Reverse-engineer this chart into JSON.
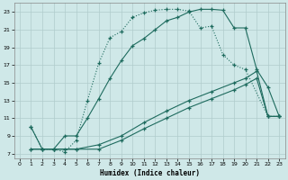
{
  "xlabel": "Humidex (Indice chaleur)",
  "bg_color": "#cfe8e8",
  "grid_color": "#b0cccc",
  "line_color": "#1e6b5e",
  "xlim": [
    -0.5,
    23.5
  ],
  "ylim": [
    6.5,
    24
  ],
  "xticks": [
    0,
    1,
    2,
    3,
    4,
    5,
    6,
    7,
    8,
    9,
    10,
    11,
    12,
    13,
    14,
    15,
    16,
    17,
    18,
    19,
    20,
    21,
    22,
    23
  ],
  "yticks": [
    7,
    9,
    11,
    13,
    15,
    17,
    19,
    21,
    23
  ],
  "line1_x": [
    1,
    2,
    3,
    4,
    5,
    6,
    7,
    8,
    9,
    10,
    11,
    12,
    13,
    14,
    15,
    16,
    17,
    18,
    19,
    20,
    22,
    23
  ],
  "line1_y": [
    10,
    7.5,
    7.5,
    7.2,
    8.5,
    13,
    17.2,
    20.1,
    20.8,
    22.4,
    22.9,
    23.2,
    23.3,
    23.3,
    23.1,
    21.2,
    21.4,
    18.2,
    17.0,
    16.5,
    11.2,
    11.2
  ],
  "line2_x": [
    1,
    2,
    3,
    4,
    5,
    6,
    7,
    8,
    9,
    10,
    11,
    12,
    13,
    14,
    15,
    16,
    17,
    18,
    19,
    20,
    21,
    22,
    23
  ],
  "line2_y": [
    10,
    7.5,
    7.5,
    9.0,
    9.0,
    11,
    13.2,
    15.5,
    17.5,
    19.2,
    20.0,
    21.0,
    22.0,
    22.4,
    23.0,
    23.3,
    23.3,
    23.2,
    21.2,
    21.2,
    16.5,
    14.5,
    11.2
  ],
  "line3_x": [
    1,
    2,
    3,
    4,
    5,
    7,
    9,
    11,
    13,
    15,
    17,
    19,
    20,
    21,
    22,
    23
  ],
  "line3_y": [
    7.5,
    7.5,
    7.5,
    7.5,
    7.5,
    8.0,
    9.0,
    10.5,
    11.8,
    13.0,
    14.0,
    15.0,
    15.5,
    16.3,
    11.2,
    11.2
  ],
  "line4_x": [
    1,
    3,
    5,
    7,
    9,
    11,
    13,
    15,
    17,
    19,
    20,
    21,
    22,
    23
  ],
  "line4_y": [
    7.5,
    7.5,
    7.5,
    7.5,
    8.5,
    9.8,
    11.0,
    12.2,
    13.2,
    14.2,
    14.8,
    15.5,
    11.2,
    11.2
  ]
}
